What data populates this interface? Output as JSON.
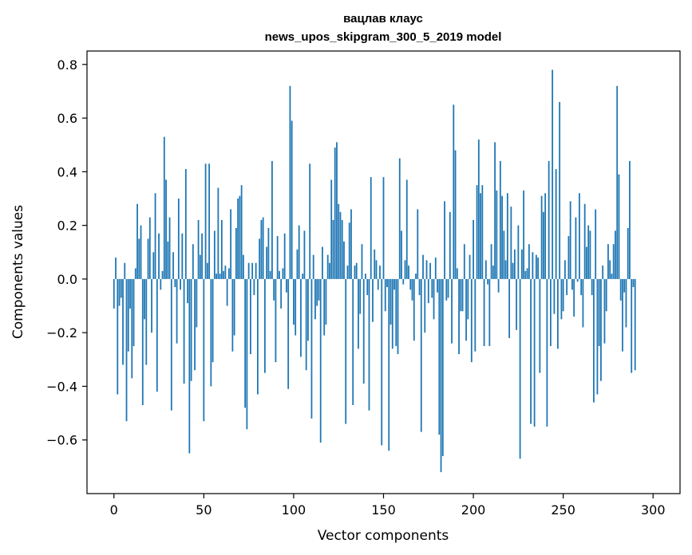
{
  "chart_data": {
    "type": "bar",
    "title": "вацлав клаус",
    "subtitle": "news_upos_skipgram_300_5_2019 model",
    "xlabel": "Vector components",
    "ylabel": "Components values",
    "xlim": [
      -15,
      315
    ],
    "ylim": [
      -0.8,
      0.85
    ],
    "xticks": [
      0,
      50,
      100,
      150,
      200,
      250,
      300
    ],
    "xtick_labels": [
      "0",
      "50",
      "100",
      "150",
      "200",
      "250",
      "300"
    ],
    "yticks": [
      -0.6,
      -0.4,
      -0.2,
      0.0,
      0.2,
      0.4,
      0.6,
      0.8
    ],
    "ytick_labels": [
      "−0.6",
      "−0.4",
      "−0.2",
      "0.0",
      "0.2",
      "0.4",
      "0.6",
      "0.8"
    ],
    "bar_color": "#1f77b4",
    "grid": false,
    "legend": "none",
    "values": [
      -0.11,
      0.08,
      -0.43,
      -0.1,
      -0.07,
      -0.32,
      0.06,
      -0.53,
      -0.27,
      -0.11,
      -0.37,
      -0.25,
      0.04,
      0.28,
      0.15,
      0.2,
      -0.47,
      -0.15,
      -0.32,
      0.15,
      0.23,
      -0.2,
      0.1,
      0.32,
      -0.42,
      0.17,
      -0.04,
      0.03,
      0.53,
      0.37,
      0.14,
      0.23,
      -0.49,
      0.1,
      -0.03,
      -0.24,
      0.3,
      -0.04,
      0.17,
      -0.39,
      0.41,
      -0.09,
      -0.65,
      -0.38,
      0.13,
      -0.34,
      -0.18,
      0.22,
      0.09,
      0.17,
      -0.53,
      0.43,
      0.06,
      0.43,
      -0.4,
      -0.31,
      0.18,
      0.02,
      0.34,
      0.02,
      0.22,
      0.03,
      0.05,
      -0.1,
      0.04,
      0.26,
      -0.27,
      -0.21,
      0.19,
      0.3,
      0.31,
      0.35,
      0.09,
      -0.48,
      -0.56,
      0.06,
      -0.28,
      0.06,
      -0.06,
      0.06,
      -0.43,
      0.15,
      0.22,
      0.23,
      -0.35,
      0.12,
      0.19,
      0.03,
      0.44,
      -0.08,
      -0.31,
      0.16,
      0.03,
      -0.11,
      0.04,
      0.17,
      -0.05,
      -0.41,
      0.72,
      0.59,
      -0.17,
      -0.21,
      0.11,
      0.2,
      -0.29,
      0.02,
      0.18,
      -0.34,
      -0.23,
      0.43,
      -0.52,
      0.09,
      -0.15,
      -0.1,
      -0.08,
      -0.61,
      0.12,
      -0.21,
      -0.17,
      0.09,
      0.06,
      0.37,
      0.22,
      0.49,
      0.51,
      0.28,
      0.25,
      0.22,
      0.14,
      -0.54,
      0.05,
      0.21,
      0.26,
      -0.47,
      0.05,
      0.06,
      -0.26,
      -0.13,
      0.13,
      -0.39,
      0.02,
      -0.06,
      -0.49,
      0.38,
      -0.16,
      0.11,
      0.07,
      -0.04,
      0.05,
      -0.62,
      0.38,
      -0.12,
      -0.03,
      -0.64,
      -0.17,
      -0.26,
      -0.04,
      -0.25,
      -0.28,
      0.45,
      0.18,
      -0.02,
      0.07,
      0.37,
      0.05,
      -0.04,
      -0.08,
      -0.23,
      0.02,
      0.26,
      -0.06,
      -0.57,
      0.09,
      -0.2,
      0.07,
      -0.09,
      0.06,
      -0.07,
      -0.15,
      0.08,
      -0.05,
      -0.58,
      -0.72,
      -0.66,
      0.29,
      -0.08,
      -0.07,
      0.25,
      -0.24,
      0.65,
      0.48,
      0.04,
      -0.28,
      -0.12,
      -0.12,
      0.13,
      -0.23,
      -0.15,
      0.09,
      -0.31,
      0.22,
      -0.27,
      0.35,
      0.52,
      0.32,
      0.35,
      -0.25,
      0.07,
      -0.02,
      -0.25,
      0.13,
      0.05,
      0.51,
      0.33,
      -0.05,
      0.44,
      0.31,
      0.18,
      0.07,
      0.32,
      -0.22,
      0.27,
      0.06,
      0.11,
      -0.19,
      0.2,
      -0.67,
      0.11,
      0.33,
      0.03,
      0.04,
      0.13,
      -0.54,
      0.1,
      -0.55,
      0.09,
      0.08,
      -0.35,
      0.31,
      0.25,
      0.32,
      -0.55,
      0.44,
      -0.25,
      0.78,
      -0.13,
      0.41,
      -0.26,
      0.66,
      -0.15,
      -0.12,
      0.07,
      -0.06,
      0.16,
      0.29,
      -0.04,
      -0.14,
      0.23,
      -0.01,
      0.32,
      -0.06,
      -0.18,
      0.28,
      0.12,
      0.2,
      0.18,
      -0.06,
      -0.46,
      0.26,
      -0.43,
      -0.25,
      -0.38,
      0.05,
      -0.24,
      -0.12,
      0.13,
      0.07,
      0.02,
      0.13,
      0.18,
      0.72,
      0.39,
      -0.08,
      -0.27,
      -0.05,
      -0.18,
      0.19,
      0.44,
      -0.35,
      -0.03,
      -0.34
    ]
  }
}
